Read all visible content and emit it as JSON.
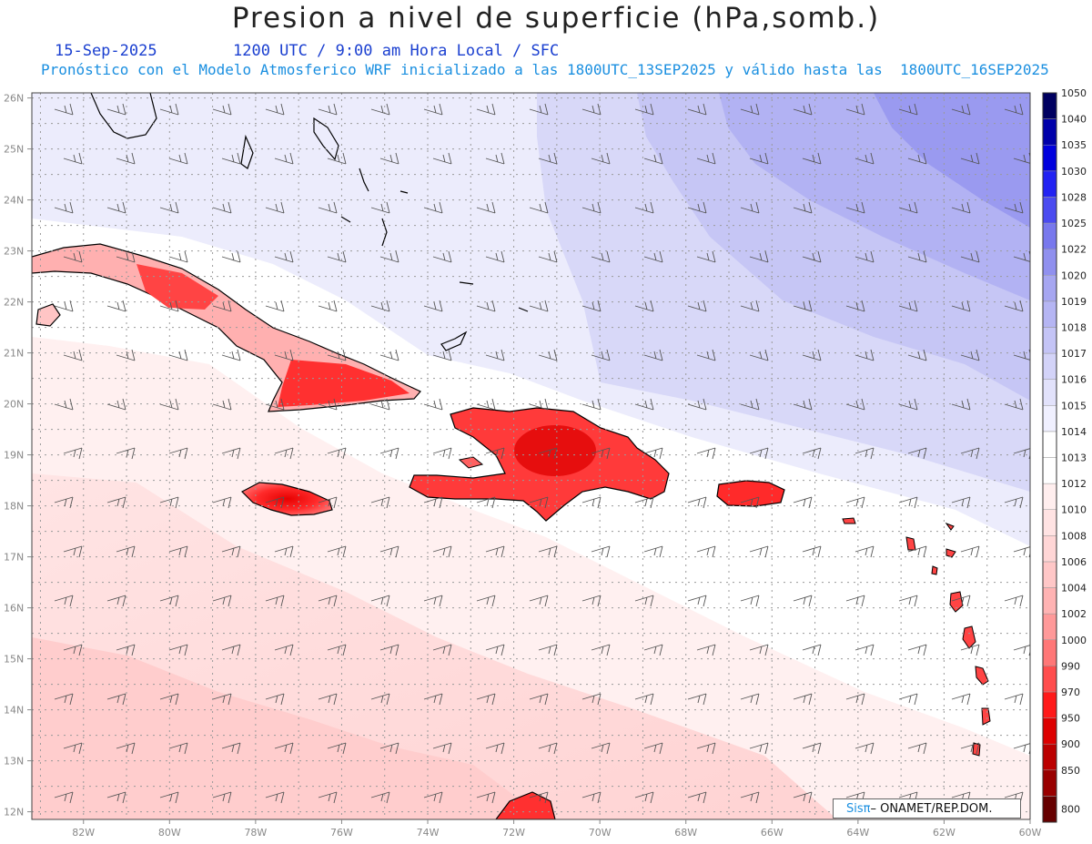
{
  "header": {
    "title": "Presion a nivel de superficie (hPa,somb.)",
    "date": "15-Sep-2025",
    "time": "1200 UTC / 9:00 am Hora Local / SFC",
    "forecast": "Pronóstico con el Modelo Atmosferico WRF inicializado a las 1800UTC_13SEP2025 y válido hasta las  1800UTC_16SEP2025"
  },
  "map": {
    "lon_range": [
      -83.2,
      -60.0
    ],
    "lat_range": [
      11.85,
      26.1
    ],
    "lat_labels": [
      "12N",
      "13N",
      "14N",
      "15N",
      "16N",
      "17N",
      "18N",
      "19N",
      "20N",
      "21N",
      "22N",
      "23N",
      "24N",
      "25N",
      "26N"
    ],
    "lon_labels": [
      "82W",
      "80W",
      "78W",
      "76W",
      "74W",
      "72W",
      "70W",
      "68W",
      "66W",
      "64W",
      "62W",
      "60W"
    ]
  },
  "colorbar": {
    "levels": [
      "800",
      "850",
      "900",
      "950",
      "970",
      "990",
      "1000",
      "1002",
      "1004",
      "1006",
      "1008",
      "1010",
      "1012",
      "1013",
      "1014",
      "1015",
      "1016",
      "1017",
      "1018",
      "1019",
      "1020",
      "1022",
      "1025",
      "1028",
      "1030",
      "1035",
      "1040",
      "1050"
    ],
    "colors": [
      "#660000",
      "#990000",
      "#bb0000",
      "#dd0000",
      "#ff1a1a",
      "#ff4d4d",
      "#ff7777",
      "#ff9999",
      "#ffb3b3",
      "#ffc7c7",
      "#ffd6d6",
      "#ffe3e3",
      "#ffeeee",
      "#ffffff",
      "#ffffff",
      "#f0f0ff",
      "#e2e2fb",
      "#d3d3f8",
      "#c4c4f6",
      "#b5b5f3",
      "#a6a6f1",
      "#9090ef",
      "#7878ed",
      "#4b4bf0",
      "#2222f2",
      "#0000dd",
      "#0000aa",
      "#000060"
    ]
  },
  "credit": {
    "logo": "Sisπ",
    "org": "– ONAMET/REP.DOM."
  }
}
